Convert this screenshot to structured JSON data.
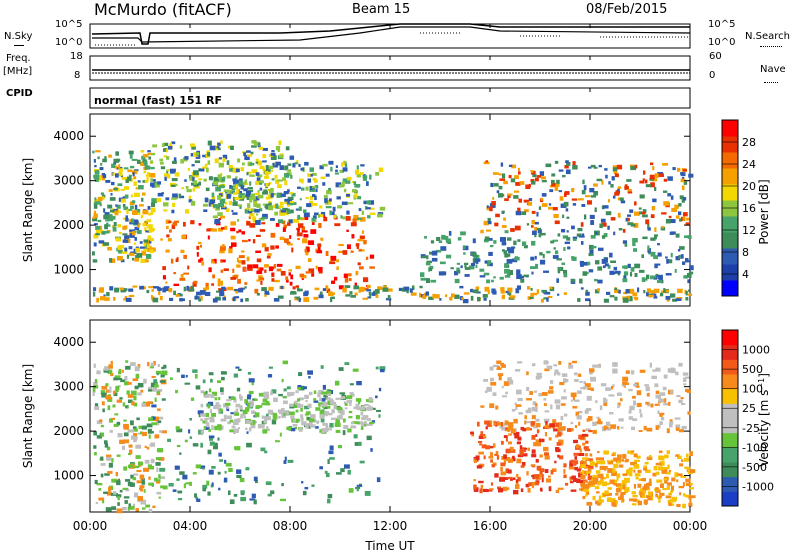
{
  "header": {
    "station": "McMurdo (fitACF)",
    "beam": "Beam 15",
    "date": "08/Feb/2015"
  },
  "left_labels": {
    "nsky": "N.Sky",
    "freq": "Freq.",
    "freq_unit": "[MHz]",
    "cpid": "CPID",
    "noise_ticks": [
      "10^5",
      "10^0"
    ],
    "freq_ticks": [
      "18",
      "8"
    ]
  },
  "right_labels": {
    "nsearch": "N.Search",
    "nave": "Nave",
    "noise_ticks": [
      "10^5",
      "10^0"
    ],
    "nave_ticks": [
      "60",
      "0"
    ]
  },
  "cpid_text": "normal (fast) 151 RF",
  "chart_data": [
    {
      "type": "heatmap",
      "name_key": "power",
      "ylabel": "Slant Range [km]",
      "yticks": [
        "4000",
        "3000",
        "2000",
        "1000"
      ],
      "colorbar": {
        "label": "Power [dB]",
        "ticks": [
          "28",
          "24",
          "20",
          "16",
          "12",
          "8",
          "4"
        ],
        "colors": [
          "#0000ff",
          "#1c3fa8",
          "#2e5bb2",
          "#3e8c5a",
          "#46a36a",
          "#8cc63f",
          "#f2d800",
          "#f6a000",
          "#f46a00",
          "#e83000",
          "#ff0000"
        ]
      },
      "x_range_hours": [
        0,
        24
      ],
      "y_range_km": [
        180,
        4500
      ]
    },
    {
      "type": "heatmap",
      "name_key": "velocity",
      "ylabel": "Slant Range [km]",
      "yticks": [
        "4000",
        "3000",
        "2000",
        "1000"
      ],
      "colorbar": {
        "label": "Velocity [m s^-1]",
        "ticks": [
          "1000",
          "500",
          "100",
          "25",
          "-25",
          "-100",
          "-500",
          "-1000"
        ],
        "colors": [
          "#1a3fc4",
          "#2e5bb2",
          "#3e8c5a",
          "#46a36a",
          "#66c33a",
          "#bfbfbf",
          "#bfbfbf",
          "#f7c000",
          "#f68a1a",
          "#f25a1a",
          "#e42a1a",
          "#ff0000"
        ]
      },
      "x_range_hours": [
        0,
        24
      ],
      "y_range_km": [
        180,
        4500
      ]
    }
  ],
  "xaxis": {
    "label": "Time UT",
    "ticks": [
      "00:00",
      "04:00",
      "08:00",
      "12:00",
      "16:00",
      "20:00",
      "00:00"
    ]
  }
}
